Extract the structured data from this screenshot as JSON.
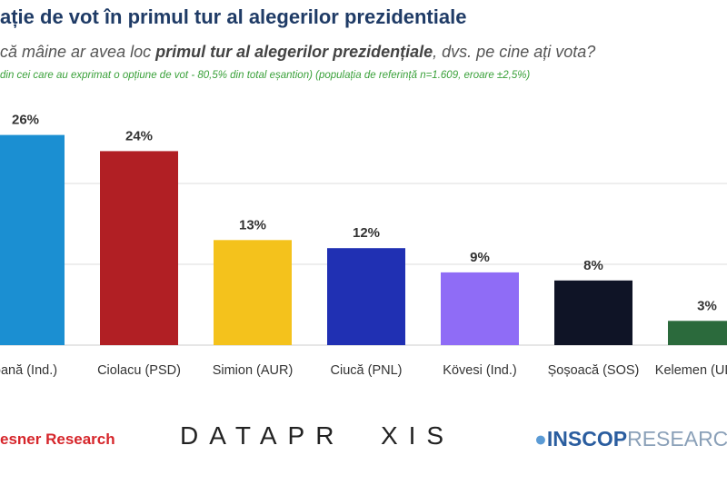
{
  "chart_data": {
    "type": "bar",
    "title": "ație de vot în primul tur al alegerilor prezidentiale",
    "subtitle_parts": [
      "că mâine ar avea loc ",
      "primul tur al alegerilor prezidențiale",
      ", dvs. pe cine ați vota?"
    ],
    "note": "din cei care au exprimat o opțiune de vot  - 80,5% din total eșantion) (populația de referință n=1.609, eroare ±2,5%)",
    "categories": [
      "oană (Ind.)",
      "Ciolacu (PSD)",
      "Simion (AUR)",
      "Ciucă (PNL)",
      "Kövesi (Ind.)",
      "Șoșoacă (SOS)",
      "Kelemen (UDMR)"
    ],
    "values": [
      26,
      24,
      13,
      12,
      9,
      8,
      3
    ],
    "value_labels": [
      "26%",
      "24%",
      "13%",
      "12%",
      "9%",
      "8%",
      "3%"
    ],
    "colors": [
      "#1b8fd2",
      "#b11f24",
      "#f4c21c",
      "#2030b3",
      "#8f6cf6",
      "#0f1426",
      "#2b6a3c"
    ],
    "ylim": [
      0,
      30
    ],
    "yticks": [
      10,
      20
    ],
    "grid": true
  },
  "footer": {
    "logos": [
      "esner Research",
      "DATAPR  XIS",
      "INSCOP",
      "RESEARCH"
    ]
  }
}
